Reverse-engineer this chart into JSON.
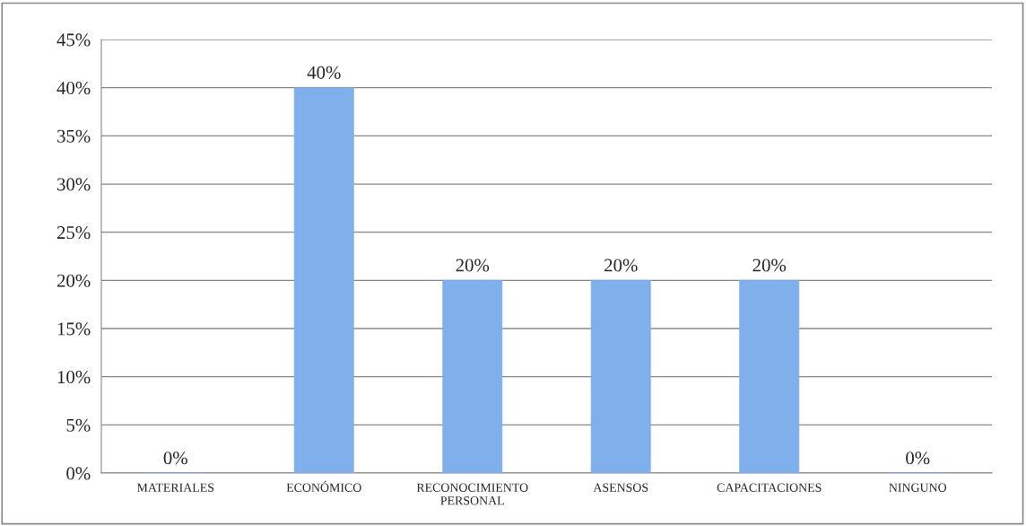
{
  "chart_data": {
    "type": "bar",
    "categories": [
      "MATERIALES",
      "ECONÓMICO",
      "RECONOCIMIENTO\nPERSONAL",
      "ASENSOS",
      "CAPACITACIONES",
      "NINGUNO"
    ],
    "values": [
      0,
      40,
      20,
      20,
      20,
      0
    ],
    "value_labels": [
      "0%",
      "40%",
      "20%",
      "20%",
      "20%",
      "0%"
    ],
    "color": "#7fb0ec",
    "ylim": [
      0,
      45
    ],
    "yticks": [
      {
        "value": 0,
        "label": "0%"
      },
      {
        "value": 5,
        "label": "5%"
      },
      {
        "value": 10,
        "label": "10%"
      },
      {
        "value": 15,
        "label": "15%"
      },
      {
        "value": 20,
        "label": "20%"
      },
      {
        "value": 25,
        "label": "25%"
      },
      {
        "value": 30,
        "label": "30%"
      },
      {
        "value": 35,
        "label": "35%"
      },
      {
        "value": 40,
        "label": "40%"
      },
      {
        "value": 45,
        "label": "45%"
      }
    ],
    "grid": "y"
  }
}
